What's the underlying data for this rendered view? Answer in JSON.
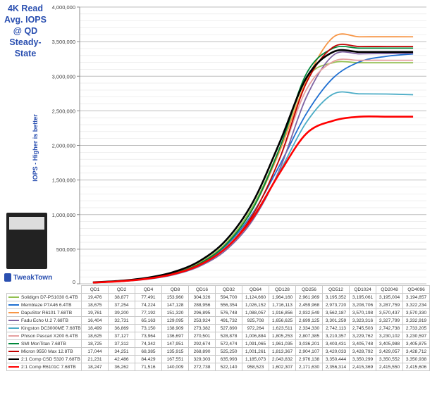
{
  "title": "4K Read Avg. IOPS @ QD Steady-State",
  "logo_text": "TweakTown",
  "chart_data": {
    "type": "line",
    "title": "4K Read Avg. IOPS @ QD Steady-State",
    "ylabel": "IOPS - Higher is better",
    "xlabel": "",
    "ylim": [
      0,
      4000000
    ],
    "yticks": [
      "0",
      "500,000",
      "1,000,000",
      "1,500,000",
      "2,000,000",
      "2,500,000",
      "3,000,000",
      "3,500,000",
      "4,000,000"
    ],
    "grid": true,
    "legend": "bottom-table",
    "categories": [
      "QD1",
      "QD2",
      "QD4",
      "QD8",
      "QD16",
      "QD32",
      "QD64",
      "QD128",
      "QD256",
      "QD512",
      "QD1024",
      "QD2048",
      "QD4096"
    ],
    "series": [
      {
        "name": "Solidigm D7-PS1030 6.4TB",
        "color": "#92c050",
        "values": [
          19476,
          38877,
          77491,
          153960,
          304326,
          594700,
          1124660,
          1964160,
          2961969,
          3195352,
          3195061,
          3195004,
          3194857
        ]
      },
      {
        "name": "Memblaze P7A46 6.4TB",
        "color": "#1f6fd1",
        "values": [
          18675,
          37254,
          74224,
          147128,
          288956,
          556354,
          1026152,
          1716113,
          2459968,
          2973720,
          3208706,
          3287759,
          3322234
        ]
      },
      {
        "name": "DapuStor R6101 7.68TB",
        "color": "#f79646",
        "values": [
          19761,
          39200,
          77192,
          151320,
          296895,
          576748,
          1088057,
          1916856,
          2932549,
          3562187,
          3570198,
          3570437,
          3570330
        ]
      },
      {
        "name": "Fadu Echo U.2 7.68TB",
        "color": "#8064a2",
        "values": [
          16404,
          32731,
          65163,
          129095,
          253924,
          491732,
          925708,
          1656625,
          2699125,
          3301259,
          3323316,
          3327799,
          3332919
        ]
      },
      {
        "name": "Kingston DC3000ME 7.68TB",
        "color": "#4bacc6",
        "values": [
          18499,
          36869,
          73150,
          138909,
          273382,
          527890,
          972264,
          1623511,
          2334330,
          2742113,
          2745503,
          2742738,
          2733205
        ]
      },
      {
        "name": "Phison Pascari X200 6.4TB",
        "color": "#e6a0a0",
        "values": [
          18625,
          37127,
          73964,
          136697,
          270501,
          528878,
          1006884,
          1805253,
          2807385,
          3210357,
          3229762,
          3230102,
          3230597
        ]
      },
      {
        "name": "SMI MonTitan 7.68TB",
        "color": "#00883a",
        "values": [
          18725,
          37312,
          74342,
          147951,
          292674,
          572474,
          1091065,
          1961035,
          3036201,
          3403431,
          3405748,
          3405988,
          3405875
        ]
      },
      {
        "name": "Micron 9550 Max 12.8TB",
        "color": "#c00000",
        "values": [
          17044,
          34251,
          68385,
          135915,
          268890,
          525250,
          1001261,
          1813367,
          2904107,
          3420033,
          3428792,
          3429057,
          3428712
        ]
      },
      {
        "name": "2:1 Comp CSD 5320 7.68TB",
        "color": "#000000",
        "values": [
          21231,
          42486,
          84429,
          167551,
          329303,
          635993,
          1185073,
          2043832,
          2976138,
          3350444,
          3350299,
          3350552,
          3350938
        ]
      },
      {
        "name": "2:1 Comp R6101C 7.68TB",
        "color": "#ff0000",
        "values": [
          18247,
          36262,
          71516,
          140009,
          272738,
          522140,
          958523,
          1602307,
          2171630,
          2356314,
          2415369,
          2415550,
          2415606
        ]
      }
    ]
  }
}
